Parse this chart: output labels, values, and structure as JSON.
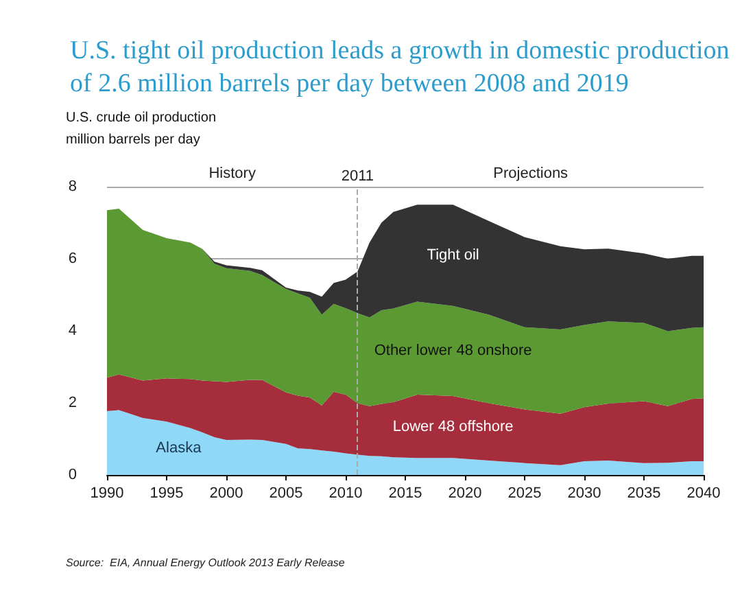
{
  "chart_data": {
    "type": "area",
    "stacked": true,
    "title": "U.S. tight oil production leads a growth in domestic production of 2.6 million barrels per day between 2008 and 2019",
    "ylabel": "U.S. crude oil production\nmillion barrels per day",
    "x": [
      1990,
      1991,
      1993,
      1995,
      1997,
      1998,
      1999,
      2000,
      2002,
      2003,
      2005,
      2006,
      2007,
      2008,
      2009,
      2010,
      2011,
      2012,
      2013,
      2014,
      2016,
      2019,
      2022,
      2025,
      2028,
      2030,
      2032,
      2035,
      2037,
      2039,
      2040
    ],
    "series": [
      {
        "name": "Alaska",
        "color": "#8fd8f8",
        "values": [
          1.77,
          1.8,
          1.58,
          1.48,
          1.3,
          1.18,
          1.05,
          0.97,
          0.98,
          0.97,
          0.86,
          0.74,
          0.72,
          0.68,
          0.65,
          0.6,
          0.56,
          0.53,
          0.52,
          0.49,
          0.47,
          0.47,
          0.4,
          0.33,
          0.27,
          0.38,
          0.4,
          0.33,
          0.34,
          0.38,
          0.38
        ]
      },
      {
        "name": "Lower 48 offshore",
        "color": "#a52d3c",
        "values": [
          0.93,
          0.99,
          1.04,
          1.2,
          1.36,
          1.44,
          1.55,
          1.61,
          1.66,
          1.67,
          1.43,
          1.46,
          1.43,
          1.25,
          1.66,
          1.63,
          1.43,
          1.38,
          1.45,
          1.53,
          1.76,
          1.72,
          1.59,
          1.49,
          1.43,
          1.5,
          1.58,
          1.72,
          1.57,
          1.73,
          1.75
        ]
      },
      {
        "name": "Other lower 48 onshore",
        "color": "#5b9a33",
        "values": [
          4.65,
          4.6,
          4.18,
          3.89,
          3.79,
          3.65,
          3.26,
          3.16,
          3.02,
          2.91,
          2.87,
          2.84,
          2.77,
          2.52,
          2.44,
          2.4,
          2.5,
          2.46,
          2.6,
          2.6,
          2.58,
          2.5,
          2.46,
          2.28,
          2.34,
          2.28,
          2.28,
          2.17,
          2.08,
          1.97,
          1.97
        ]
      },
      {
        "name": "Tight oil",
        "color": "#333333",
        "values": [
          0,
          0,
          0,
          0,
          0,
          0,
          0.06,
          0.08,
          0.09,
          0.13,
          0.04,
          0.08,
          0.16,
          0.5,
          0.58,
          0.79,
          1.16,
          2.08,
          2.43,
          2.68,
          2.69,
          2.81,
          2.6,
          2.5,
          2.31,
          2.1,
          2.02,
          1.93,
          2.01,
          2.0,
          1.98
        ]
      }
    ],
    "xlim": [
      1990,
      2040
    ],
    "xticks": [
      1990,
      1995,
      2000,
      2005,
      2010,
      2015,
      2020,
      2025,
      2030,
      2035,
      2040
    ],
    "ylim": [
      0,
      8
    ],
    "yticks": [
      0,
      2,
      4,
      6,
      8
    ],
    "grid": "y",
    "ref_lines": [
      {
        "axis": "x",
        "value": 2011,
        "label": "2011",
        "color": "#aaaaaa",
        "line_style": "dashed"
      }
    ],
    "annotations": [
      "History",
      "Projections",
      "Source:  EIA, Annual Energy Outlook 2013 Early Release"
    ]
  }
}
